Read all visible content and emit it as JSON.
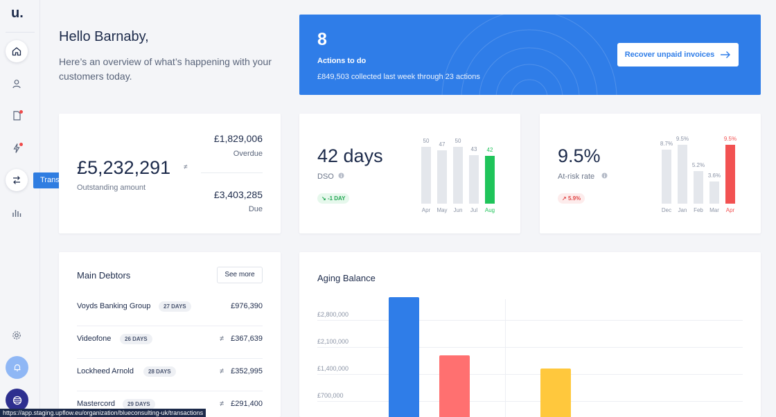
{
  "sidebar": {
    "logo": "u.",
    "tooltip": "Transactions"
  },
  "greeting": {
    "title": "Hello Barnaby,",
    "subtitle": "Here’s an overview of what’s happening with your customers today."
  },
  "actions": {
    "count": "8",
    "label": "Actions to do",
    "summary": "£849,503 collected last week through 23 actions",
    "button_label": "Recover unpaid invoices"
  },
  "outstanding": {
    "amount": "£5,232,291",
    "label": "Outstanding amount",
    "overdue_amount": "£1,829,006",
    "overdue_label": "Overdue",
    "due_amount": "£3,403,285",
    "due_label": "Due"
  },
  "dso": {
    "value": "42 days",
    "label": "DSO",
    "change": "-1 DAY",
    "chart_data": {
      "type": "bar",
      "categories": [
        "Apr",
        "May",
        "Jun",
        "Jul",
        "Aug"
      ],
      "values": [
        50,
        47,
        50,
        43,
        42
      ],
      "ylim": [
        0,
        55
      ],
      "highlight": "Aug",
      "highlight_color": "#1fc45a"
    }
  },
  "risk": {
    "value": "9.5%",
    "label": "At-risk rate",
    "change": "5.9%",
    "chart_data": {
      "type": "bar",
      "categories": [
        "Dec",
        "Jan",
        "Feb",
        "Mar",
        "Apr"
      ],
      "labels": [
        "8.7%",
        "9.5%",
        "5.2%",
        "3.6%",
        "9.5%"
      ],
      "values": [
        8.7,
        9.5,
        5.2,
        3.6,
        9.5
      ],
      "ylim": [
        0,
        10
      ],
      "highlight": "Apr",
      "highlight_color": "#f25252"
    }
  },
  "debtors": {
    "title": "Main Debtors",
    "see_more": "See more",
    "rows": [
      {
        "name": "Voyds Banking Group",
        "days": "27 DAYS",
        "amount": "£976,390",
        "eq": ""
      },
      {
        "name": "Videofone",
        "days": "26 DAYS",
        "amount": "£367,639",
        "eq": "≠"
      },
      {
        "name": "Lockheed Arnold",
        "days": "28 DAYS",
        "amount": "£352,995",
        "eq": "≠"
      },
      {
        "name": "Mastercord",
        "days": "29 DAYS",
        "amount": "£291,400",
        "eq": "≠"
      }
    ]
  },
  "aging": {
    "title": "Aging Balance",
    "chart_data": {
      "type": "bar",
      "yticks": [
        "£2,800,000",
        "£2,100,000",
        "£1,400,000",
        "£700,000"
      ],
      "ylim": [
        0,
        3500000
      ],
      "series": [
        {
          "values": [
            3250000
          ],
          "color": "#2f7de8"
        },
        {
          "values": [
            1750000
          ],
          "color": "#ff7070"
        },
        {
          "values": [
            1400000
          ],
          "color": "#ffc83d"
        }
      ]
    }
  },
  "status_url": "https://app.staging.upflow.eu/organization/blueconsulting-uk/transactions"
}
